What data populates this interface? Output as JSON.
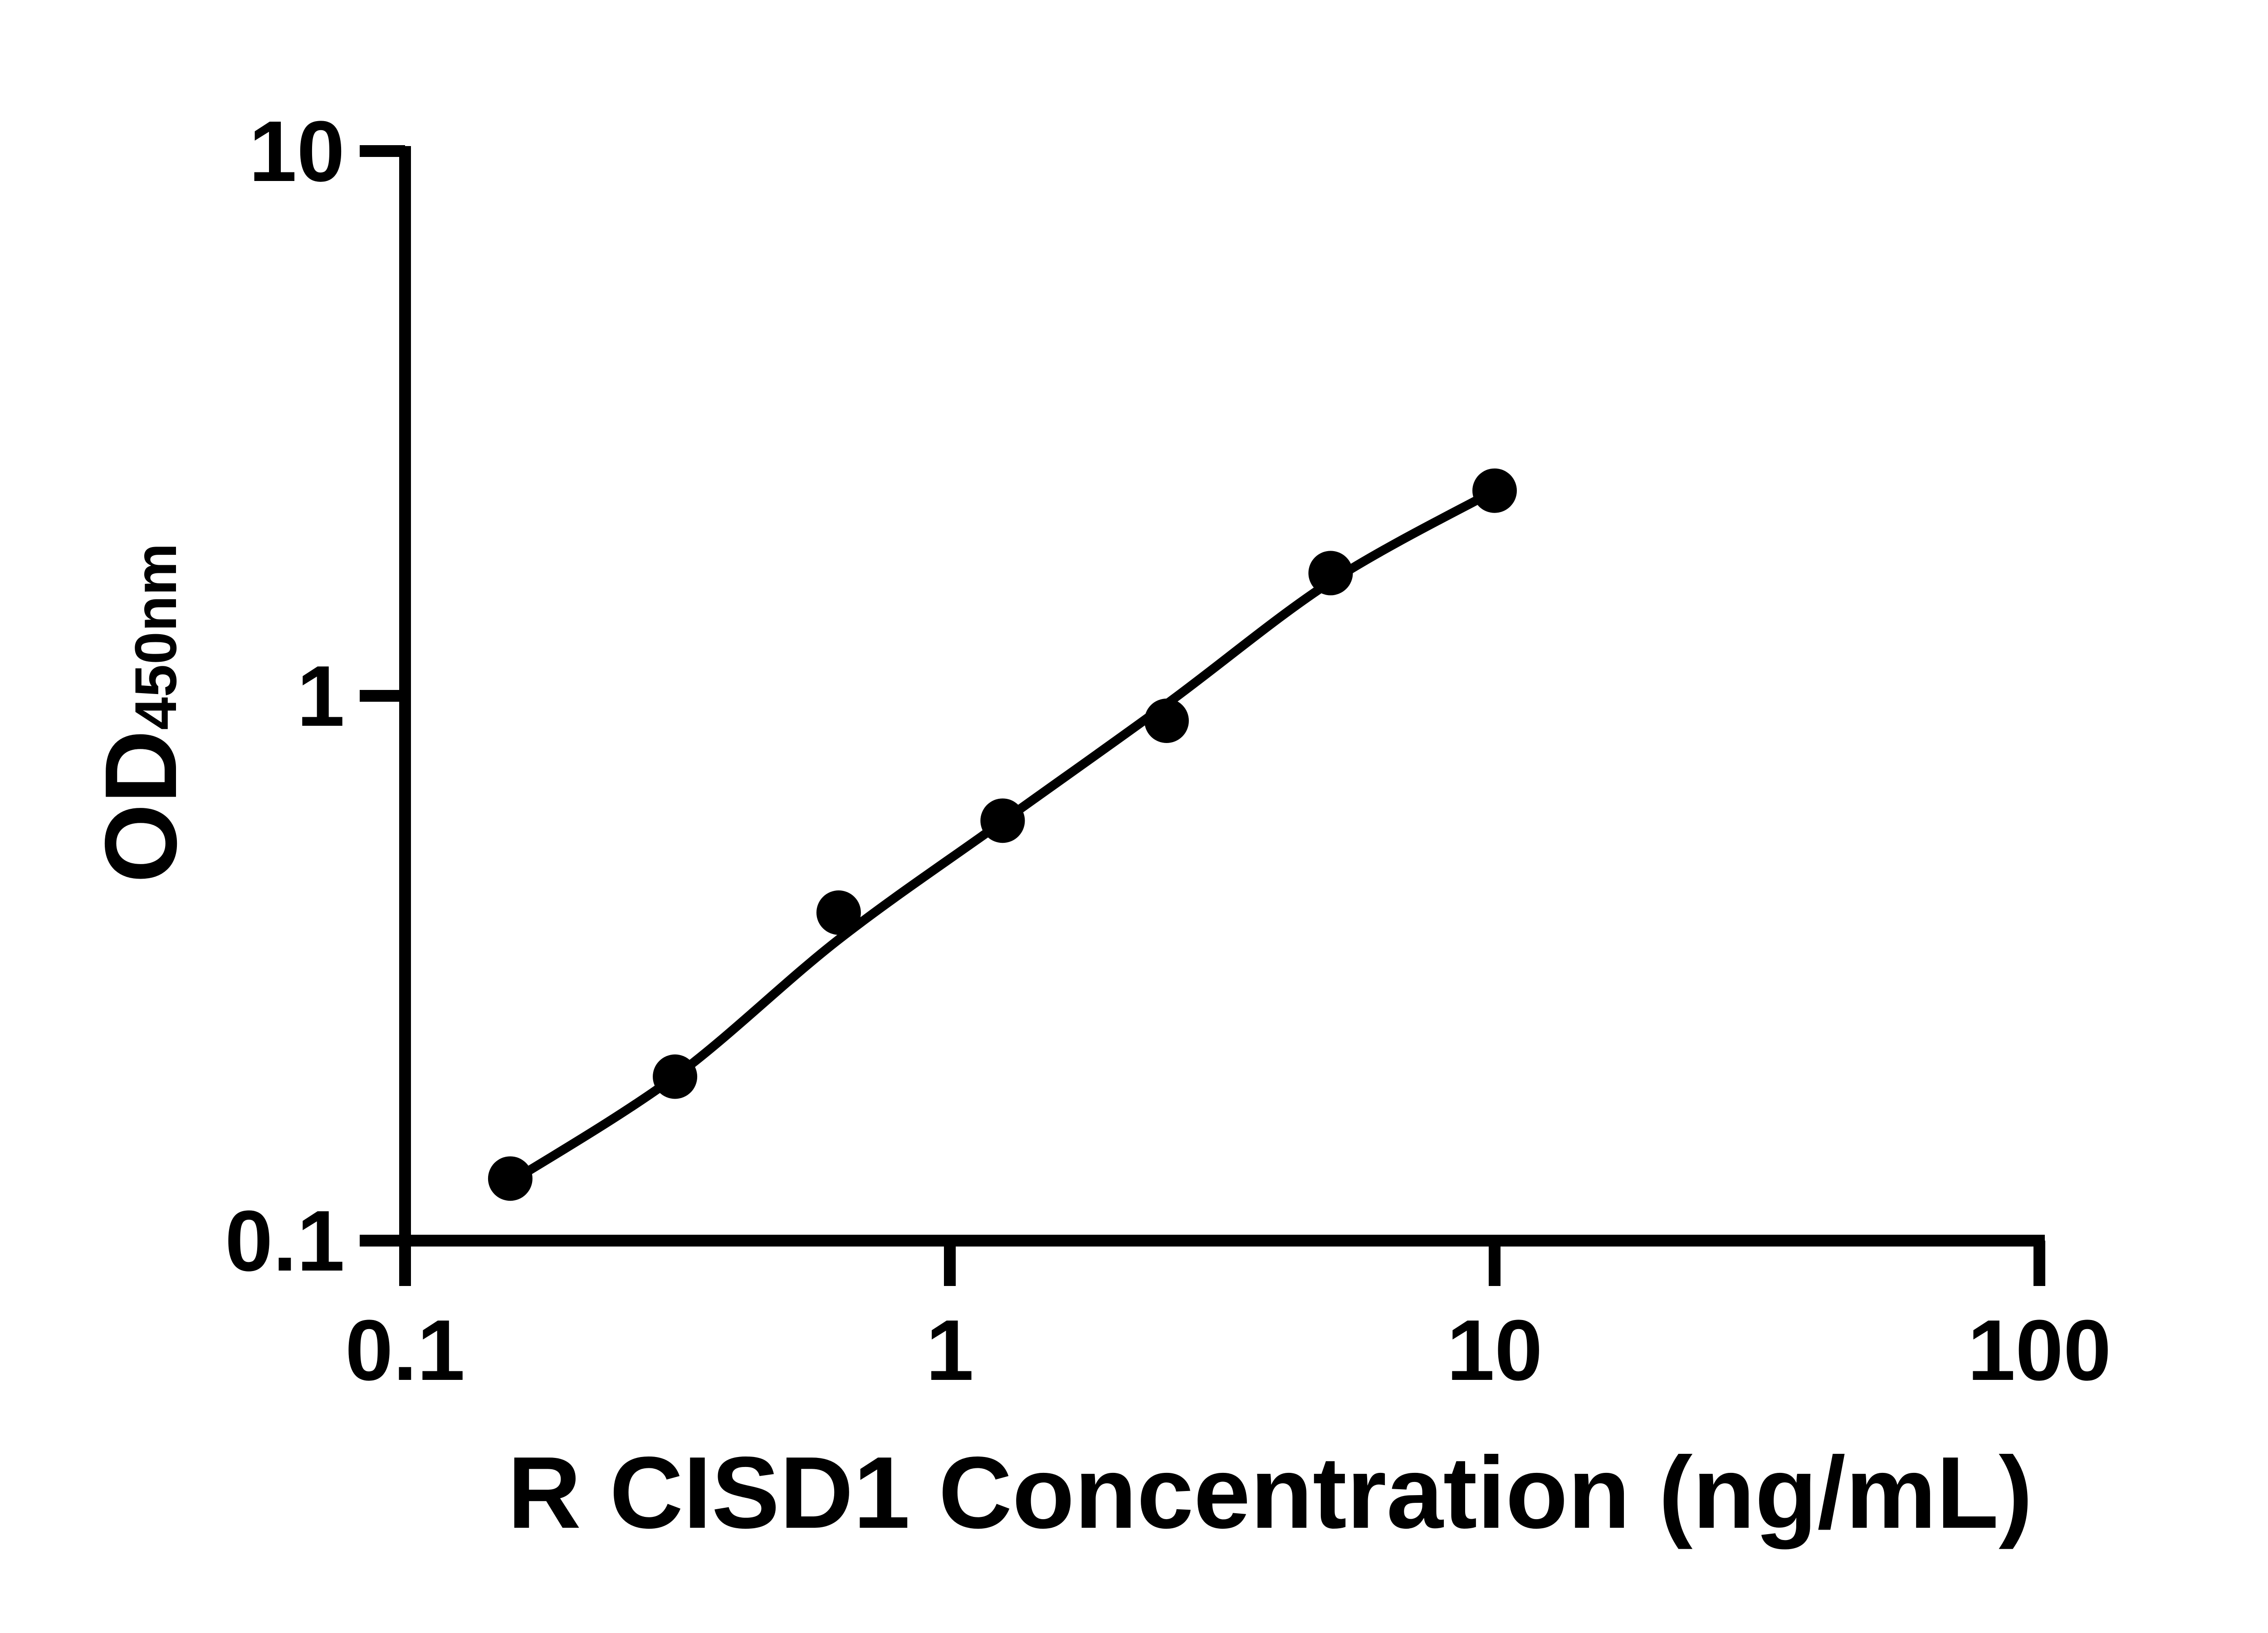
{
  "figure": {
    "background_color": "#ffffff",
    "ink_color": "#000000"
  },
  "chart_data": {
    "type": "scatter",
    "title": "",
    "xlabel": "R CISD1 Concentration (ng/mL)",
    "ylabel_main": "OD",
    "ylabel_sub": "450nm",
    "x_scale": "log",
    "y_scale": "log",
    "xlim": [
      0.1,
      100
    ],
    "ylim": [
      0.1,
      10
    ],
    "x_ticks": [
      0.1,
      1,
      10,
      100
    ],
    "x_tick_labels": [
      "0.1",
      "1",
      "10",
      "100"
    ],
    "y_ticks": [
      0.1,
      1,
      10
    ],
    "y_tick_labels": [
      "0.1",
      "1",
      "10"
    ],
    "grid": false,
    "legend_position": "none",
    "marker_color": "#000000",
    "line_color": "#000000",
    "points": [
      {
        "x": 0.156,
        "y": 0.13
      },
      {
        "x": 0.313,
        "y": 0.2
      },
      {
        "x": 0.625,
        "y": 0.4
      },
      {
        "x": 1.25,
        "y": 0.59
      },
      {
        "x": 2.5,
        "y": 0.9
      },
      {
        "x": 5,
        "y": 1.68
      },
      {
        "x": 10,
        "y": 2.38
      }
    ],
    "fit_curve": [
      {
        "x": 0.156,
        "y": 0.128
      },
      {
        "x": 0.313,
        "y": 0.2
      },
      {
        "x": 0.625,
        "y": 0.357
      },
      {
        "x": 1.25,
        "y": 0.588
      },
      {
        "x": 2.5,
        "y": 0.966
      },
      {
        "x": 5,
        "y": 1.62
      },
      {
        "x": 10,
        "y": 2.38
      }
    ]
  }
}
